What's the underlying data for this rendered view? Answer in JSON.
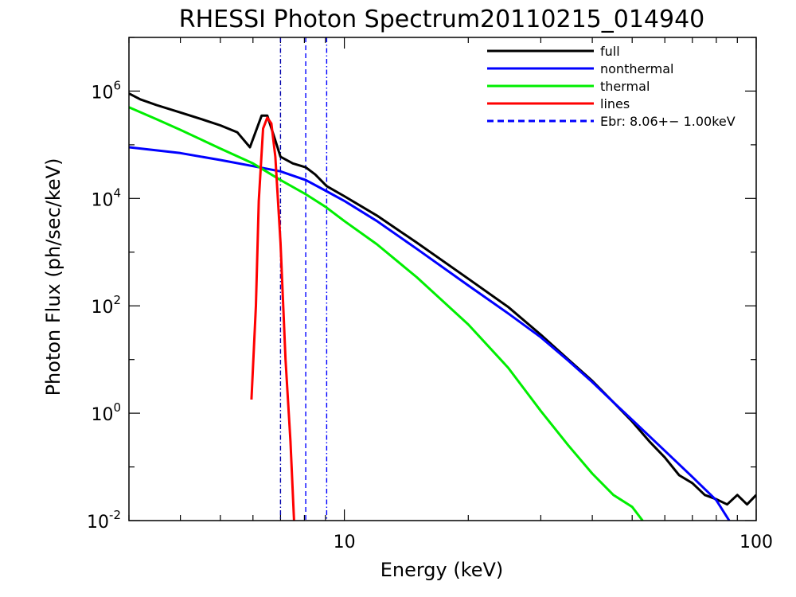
{
  "chart_data": {
    "type": "line",
    "title": "RHESSI Photon Spectrum20110215_014940",
    "xlabel": "Energy (keV)",
    "ylabel": "Photon Flux (ph/sec/keV)",
    "x_scale": "log",
    "y_scale": "log",
    "xlim": [
      3,
      100
    ],
    "ylim": [
      0.01,
      10000000
    ],
    "x_tick_labels": [
      {
        "value": 10,
        "label": "10"
      },
      {
        "value": 100,
        "label": "100"
      }
    ],
    "y_tick_labels": [
      {
        "value": 0.01,
        "base": "10",
        "exp": "-2"
      },
      {
        "value": 1,
        "base": "10",
        "exp": "0"
      },
      {
        "value": 100,
        "base": "10",
        "exp": "2"
      },
      {
        "value": 10000,
        "base": "10",
        "exp": "4"
      },
      {
        "value": 1000000,
        "base": "10",
        "exp": "6"
      }
    ],
    "legend_position": "top-right",
    "legend": [
      {
        "label": "full",
        "color": "#000000",
        "style": "solid"
      },
      {
        "label": "nonthermal",
        "color": "#0000ff",
        "style": "solid"
      },
      {
        "label": "thermal",
        "color": "#00ee00",
        "style": "solid"
      },
      {
        "label": "lines",
        "color": "#ff0000",
        "style": "solid"
      },
      {
        "label": "Ebr:   8.06+−  1.00keV",
        "color": "#0000ff",
        "style": "dashed"
      }
    ],
    "vertical_lines": [
      {
        "x": 7.0,
        "color": "#0000aa",
        "style": "dashdot"
      },
      {
        "x": 8.06,
        "color": "#0000ff",
        "style": "dashed"
      },
      {
        "x": 9.06,
        "color": "#0000ff",
        "style": "dashdot"
      }
    ],
    "series": [
      {
        "name": "full",
        "color": "#000000",
        "points": [
          [
            3.0,
            900000
          ],
          [
            3.2,
            700000
          ],
          [
            3.5,
            550000
          ],
          [
            4.0,
            400000
          ],
          [
            4.5,
            300000
          ],
          [
            5.0,
            230000
          ],
          [
            5.5,
            170000
          ],
          [
            5.9,
            90000
          ],
          [
            6.3,
            350000
          ],
          [
            6.5,
            350000
          ],
          [
            6.8,
            120000
          ],
          [
            7.0,
            60000
          ],
          [
            7.5,
            45000
          ],
          [
            8.06,
            38000
          ],
          [
            8.5,
            28000
          ],
          [
            9.06,
            17000
          ],
          [
            10,
            11000
          ],
          [
            12,
            4800
          ],
          [
            15,
            1500
          ],
          [
            20,
            320
          ],
          [
            25,
            95
          ],
          [
            30,
            29
          ],
          [
            35,
            10
          ],
          [
            40,
            4
          ],
          [
            45,
            1.6
          ],
          [
            50,
            0.7
          ],
          [
            55,
            0.3
          ],
          [
            60,
            0.15
          ],
          [
            65,
            0.07
          ],
          [
            70,
            0.05
          ],
          [
            75,
            0.03
          ],
          [
            80,
            0.025
          ],
          [
            85,
            0.02
          ],
          [
            90,
            0.03
          ],
          [
            95,
            0.02
          ],
          [
            100,
            0.03
          ]
        ]
      },
      {
        "name": "nonthermal",
        "color": "#0000ff",
        "points": [
          [
            3.0,
            90000
          ],
          [
            4.0,
            70000
          ],
          [
            5.0,
            52000
          ],
          [
            6.0,
            40000
          ],
          [
            7.0,
            32000
          ],
          [
            8.06,
            22000
          ],
          [
            9.0,
            14000
          ],
          [
            10,
            9000
          ],
          [
            12,
            3800
          ],
          [
            15,
            1150
          ],
          [
            20,
            240
          ],
          [
            25,
            72
          ],
          [
            30,
            26
          ],
          [
            35,
            9.5
          ],
          [
            40,
            3.8
          ],
          [
            45,
            1.6
          ],
          [
            50,
            0.75
          ],
          [
            60,
            0.2
          ],
          [
            70,
            0.065
          ],
          [
            80,
            0.024
          ],
          [
            86,
            0.01
          ]
        ]
      },
      {
        "name": "thermal",
        "color": "#00ee00",
        "points": [
          [
            3.0,
            500000
          ],
          [
            3.5,
            300000
          ],
          [
            4.0,
            190000
          ],
          [
            5.0,
            85000
          ],
          [
            6.0,
            45000
          ],
          [
            7.0,
            22000
          ],
          [
            8.06,
            12000
          ],
          [
            9.0,
            7000
          ],
          [
            10,
            3800
          ],
          [
            12,
            1400
          ],
          [
            15,
            340
          ],
          [
            20,
            45
          ],
          [
            25,
            7
          ],
          [
            30,
            1.1
          ],
          [
            35,
            0.25
          ],
          [
            40,
            0.075
          ],
          [
            45,
            0.03
          ],
          [
            50,
            0.018
          ],
          [
            53,
            0.01
          ]
        ]
      },
      {
        "name": "lines",
        "color": "#ff0000",
        "points": [
          [
            5.95,
            1.8
          ],
          [
            6.1,
            100
          ],
          [
            6.2,
            9000
          ],
          [
            6.35,
            200000
          ],
          [
            6.5,
            320000
          ],
          [
            6.65,
            250000
          ],
          [
            6.8,
            60000
          ],
          [
            7.0,
            1500
          ],
          [
            7.2,
            10
          ],
          [
            7.4,
            0.3
          ],
          [
            7.55,
            0.01
          ]
        ]
      }
    ]
  }
}
